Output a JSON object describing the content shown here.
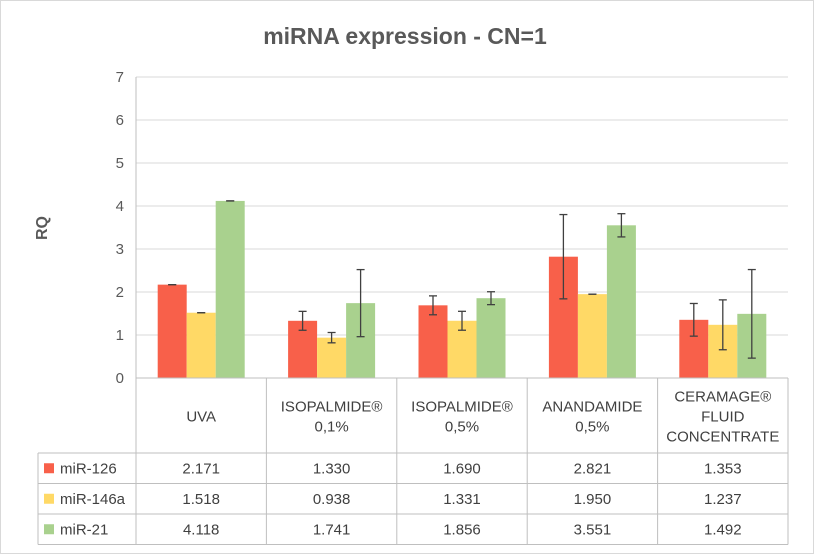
{
  "chart_data": {
    "type": "bar",
    "title": "miRNA expression - CN=1",
    "ylabel": "RQ",
    "xlabel": "",
    "ylim": [
      0,
      7
    ],
    "yticks": [
      0,
      1,
      2,
      3,
      4,
      5,
      6,
      7
    ],
    "grid": true,
    "legend_placement": "data-table",
    "categories": [
      {
        "lines": [
          "UVA"
        ]
      },
      {
        "lines": [
          "ISOPALMIDE®",
          "0,1%"
        ]
      },
      {
        "lines": [
          "ISOPALMIDE®",
          "0,5%"
        ]
      },
      {
        "lines": [
          "ANANDAMIDE",
          "0,5%"
        ]
      },
      {
        "lines": [
          "CERAMAGE®",
          "FLUID",
          "CONCENTRATE"
        ]
      }
    ],
    "series": [
      {
        "name": "miR-126",
        "color": "#f8604a",
        "values": [
          2.171,
          1.33,
          1.69,
          2.821,
          1.353
        ],
        "labels": [
          "2.171",
          "1.330",
          "1.690",
          "2.821",
          "1.353"
        ],
        "errors": [
          0.0,
          0.22,
          0.22,
          0.98,
          0.38
        ]
      },
      {
        "name": "miR-146a",
        "color": "#ffd966",
        "values": [
          1.518,
          0.938,
          1.331,
          1.95,
          1.237
        ],
        "labels": [
          "1.518",
          "0.938",
          "1.331",
          "1.950",
          "1.237"
        ],
        "errors": [
          0.0,
          0.12,
          0.22,
          0.0,
          0.58
        ]
      },
      {
        "name": "miR-21",
        "color": "#a9d18e",
        "values": [
          4.118,
          1.741,
          1.856,
          3.551,
          1.492
        ],
        "labels": [
          "4.118",
          "1.741",
          "1.856",
          "3.551",
          "1.492"
        ],
        "errors": [
          0.0,
          0.78,
          0.15,
          0.27,
          1.03
        ]
      }
    ]
  }
}
